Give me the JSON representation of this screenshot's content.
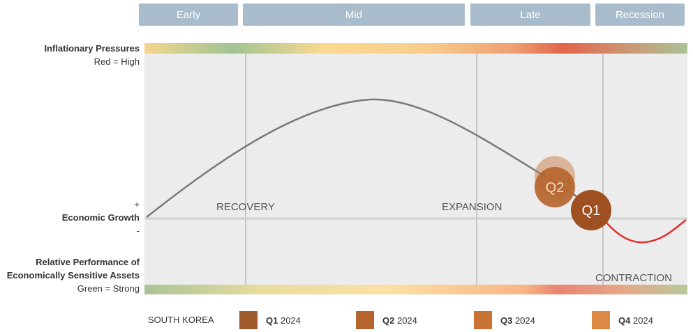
{
  "phases": [
    {
      "label": "Early"
    },
    {
      "label": "Mid"
    },
    {
      "label": "Late"
    },
    {
      "label": "Recession"
    }
  ],
  "left_labels": {
    "inflation_title": "Inflationary Pressures",
    "inflation_sub": "Red = High",
    "plus": "+",
    "growth": "Economic Growth",
    "minus": "-",
    "relperf_line1": "Relative Performance of",
    "relperf_line2": "Economically Sensitive Assets",
    "relperf_sub": "Green = Strong"
  },
  "regions": {
    "recovery": "RECOVERY",
    "expansion": "EXPANSION",
    "contraction": "CONTRACTION"
  },
  "markers": [
    {
      "label": "Q3",
      "color": "#c8743a",
      "opacity": 0.45
    },
    {
      "label": "Q2",
      "color": "#b5622a",
      "opacity": 0.9
    },
    {
      "label": "Q1",
      "color": "#9e5020",
      "opacity": 1.0
    }
  ],
  "legend": {
    "country": "SOUTH KOREA",
    "items": [
      {
        "q": "Q1",
        "year": "2024",
        "color": "#9e5a2a"
      },
      {
        "q": "Q2",
        "year": "2024",
        "color": "#b5642e"
      },
      {
        "q": "Q3",
        "year": "2024",
        "color": "#c87233"
      },
      {
        "q": "Q4",
        "year": "2024",
        "color": "#dc8a45"
      }
    ]
  },
  "colors": {
    "curve": "#7a7a7a",
    "contraction_curve": "#e0302a",
    "plot_bg": "#ececec",
    "gridline": "#b8b8b8",
    "phase_bg": "#a8bccb"
  }
}
